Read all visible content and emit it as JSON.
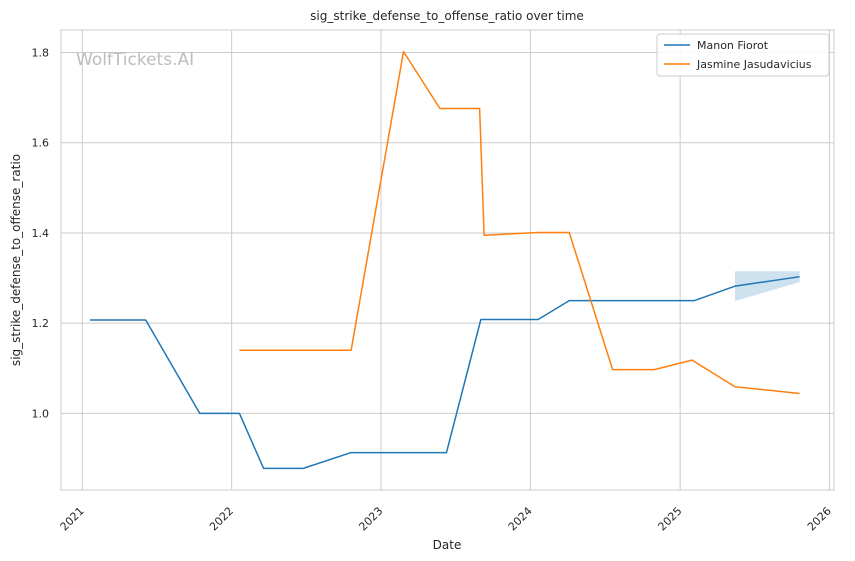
{
  "chart_data": {
    "type": "line",
    "title": "sig_strike_defense_to_offense_ratio over time",
    "xlabel": "Date",
    "ylabel": "sig_strike_defense_to_offense_ratio",
    "watermark": "WolfTickets.AI",
    "x_ticks": [
      "2021",
      "2022",
      "2023",
      "2024",
      "2025",
      "2026"
    ],
    "y_ticks": [
      "1.0",
      "1.2",
      "1.4",
      "1.6",
      "1.8"
    ],
    "xlim": [
      "2020-11-10",
      "2026-01-12"
    ],
    "ylim": [
      0.83,
      1.85
    ],
    "grid": true,
    "legend_position": "top-right",
    "series": [
      {
        "name": "Manon Fiorot",
        "color": "#1f77b4",
        "points": [
          [
            "2021-01-20",
            1.207
          ],
          [
            "2021-06-05",
            1.207
          ],
          [
            "2021-10-15",
            1.0
          ],
          [
            "2022-01-20",
            1.0
          ],
          [
            "2022-03-20",
            0.878
          ],
          [
            "2022-06-25",
            0.878
          ],
          [
            "2022-10-20",
            0.913
          ],
          [
            "2023-06-10",
            0.913
          ],
          [
            "2023-09-02",
            1.208
          ],
          [
            "2024-01-20",
            1.208
          ],
          [
            "2024-04-05",
            1.25
          ],
          [
            "2025-02-05",
            1.25
          ],
          [
            "2025-05-15",
            1.282
          ],
          [
            "2025-10-20",
            1.303
          ]
        ],
        "band": [
          [
            "2025-05-15",
            1.249,
            1.315
          ],
          [
            "2025-10-20",
            1.291,
            1.315
          ]
        ]
      },
      {
        "name": "Jasmine Jasudavicius",
        "color": "#ff7f0e",
        "points": [
          [
            "2022-01-20",
            1.14
          ],
          [
            "2022-10-20",
            1.14
          ],
          [
            "2023-02-25",
            1.802
          ],
          [
            "2023-05-25",
            1.676
          ],
          [
            "2023-08-30",
            1.676
          ],
          [
            "2023-09-10",
            1.395
          ],
          [
            "2024-01-20",
            1.401
          ],
          [
            "2024-04-05",
            1.401
          ],
          [
            "2024-07-20",
            1.097
          ],
          [
            "2024-10-30",
            1.097
          ],
          [
            "2025-01-30",
            1.118
          ],
          [
            "2025-05-15",
            1.059
          ],
          [
            "2025-10-20",
            1.044
          ]
        ]
      }
    ]
  }
}
